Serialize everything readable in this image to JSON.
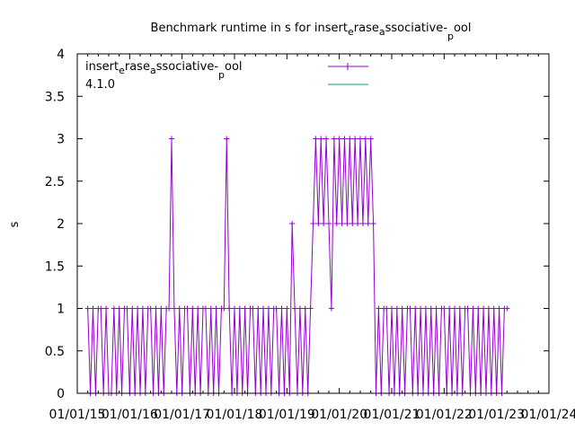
{
  "chart_data": {
    "type": "line",
    "title_parts": [
      "Benchmark runtime in s for insert",
      "e",
      "rase",
      "a",
      "ssociative-",
      "p",
      "ool"
    ],
    "xlabel": "",
    "ylabel": "s",
    "xlim": [
      2015,
      2024
    ],
    "ylim": [
      0,
      4
    ],
    "x_tick_labels": [
      "01/01/15",
      "01/01/16",
      "01/01/17",
      "01/01/18",
      "01/01/19",
      "01/01/20",
      "01/01/21",
      "01/01/22",
      "01/01/23",
      "01/01/24"
    ],
    "y_tick_labels": [
      "0",
      "0.5",
      "1",
      "1.5",
      "2",
      "2.5",
      "3",
      "3.5",
      "4"
    ],
    "legend_position": "top-left",
    "grid": false,
    "series": [
      {
        "name_parts": [
          "insert",
          "e",
          "rase",
          "a",
          "ssociative-",
          "p",
          "ool"
        ],
        "color": "#9400d3",
        "marker": "plus",
        "x_start": 2015.2,
        "x_step": 0.05,
        "values": [
          1,
          0,
          1,
          0,
          1,
          1,
          0,
          1,
          0,
          0,
          1,
          0,
          1,
          0,
          1,
          1,
          0,
          1,
          0,
          1,
          0,
          1,
          0,
          1,
          1,
          0,
          1,
          0,
          1,
          0,
          1,
          1,
          3,
          1,
          0,
          1,
          0,
          1,
          1,
          0,
          1,
          0,
          1,
          0,
          1,
          1,
          0,
          1,
          0,
          1,
          0,
          1,
          1,
          3,
          1,
          0,
          1,
          0,
          1,
          0,
          1,
          0,
          1,
          1,
          0,
          1,
          0,
          1,
          0,
          1,
          0,
          1,
          1,
          0,
          1,
          0,
          1,
          0,
          2,
          1,
          0,
          1,
          0,
          1,
          0,
          1,
          2,
          3,
          2,
          3,
          2,
          3,
          2,
          1,
          3,
          2,
          3,
          2,
          3,
          2,
          3,
          2,
          3,
          2,
          3,
          2,
          3,
          2,
          3,
          2,
          0,
          1,
          0,
          1,
          1,
          0,
          1,
          0,
          1,
          0,
          1,
          0,
          1,
          1,
          0,
          1,
          0,
          1,
          0,
          1,
          0,
          1,
          0,
          1,
          0,
          1,
          1,
          0,
          1,
          0,
          1,
          0,
          1,
          0,
          1,
          1,
          0,
          1,
          0,
          1,
          0,
          1,
          0,
          1,
          0,
          1,
          0,
          1,
          0,
          1,
          1
        ]
      },
      {
        "name": "4.1.0",
        "color": "#009e73",
        "marker": "none",
        "values": []
      }
    ]
  }
}
